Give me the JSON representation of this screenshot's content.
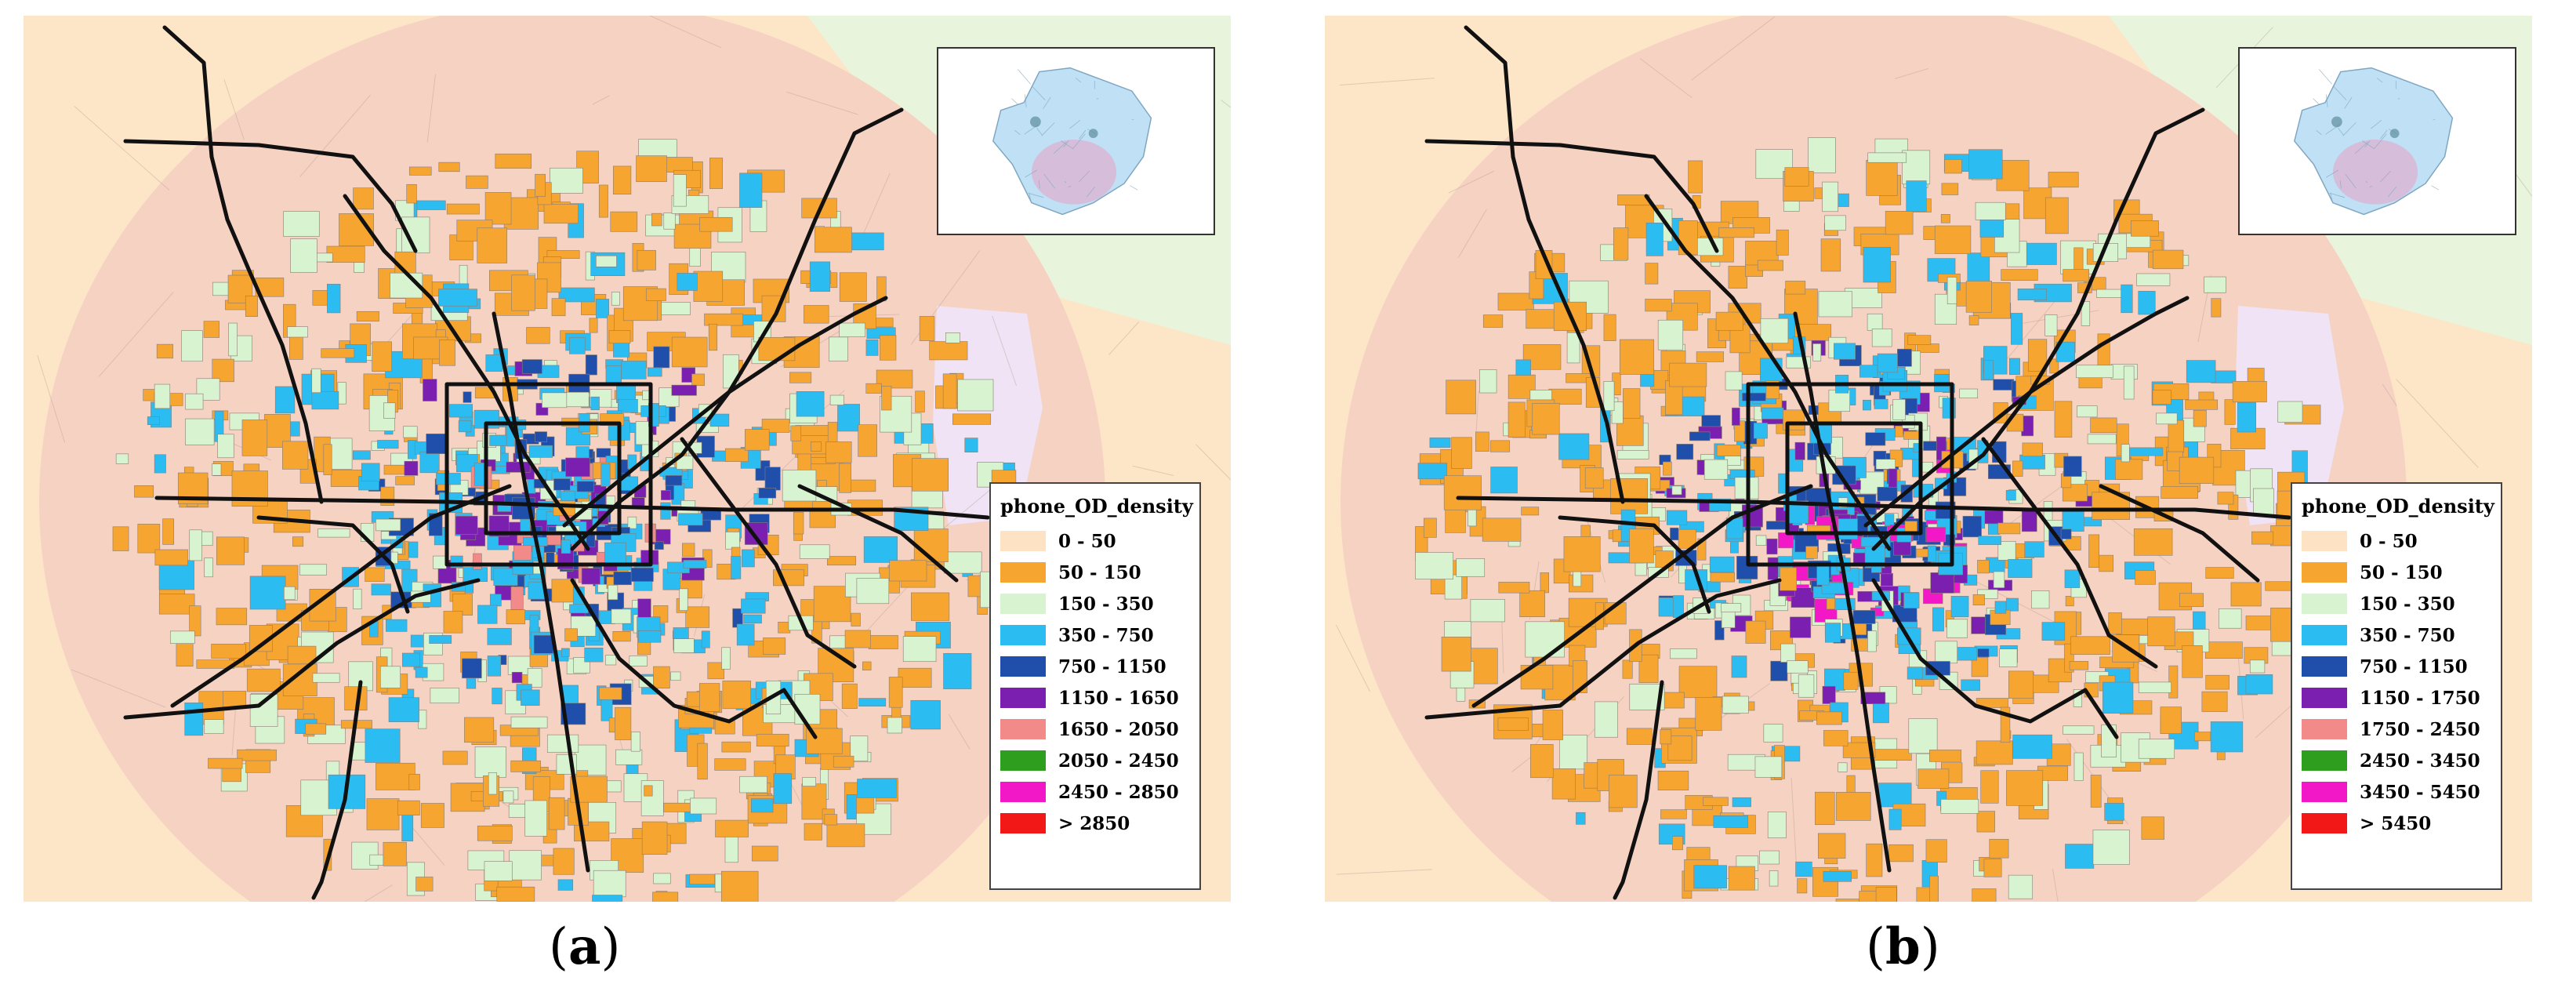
{
  "panels": [
    {
      "id": "a",
      "caption_letter": "a",
      "legend": {
        "title": "phone_OD_density",
        "items": [
          {
            "label": "0 - 50",
            "color": "#fde3c4"
          },
          {
            "label": "50 - 150",
            "color": "#f6a530"
          },
          {
            "label": "150 - 350",
            "color": "#d8f3cf"
          },
          {
            "label": "350 - 750",
            "color": "#2bbcf2"
          },
          {
            "label": "750 - 1150",
            "color": "#1f4faa"
          },
          {
            "label": "1150 - 1650",
            "color": "#7a1fb0"
          },
          {
            "label": "1650 - 2050",
            "color": "#f28a8a"
          },
          {
            "label": "2050 - 2450",
            "color": "#2e9e1e"
          },
          {
            "label": "2450 - 2850",
            "color": "#f218c8"
          },
          {
            "label": "> 2850",
            "color": "#f21818"
          }
        ]
      }
    },
    {
      "id": "b",
      "caption_letter": "b",
      "legend": {
        "title": "phone_OD_density",
        "items": [
          {
            "label": "0 - 50",
            "color": "#fde3c4"
          },
          {
            "label": "50 - 150",
            "color": "#f6a530"
          },
          {
            "label": "150 - 350",
            "color": "#d8f3cf"
          },
          {
            "label": "350 - 750",
            "color": "#2bbcf2"
          },
          {
            "label": "750 - 1150",
            "color": "#1f4faa"
          },
          {
            "label": "1150 - 1750",
            "color": "#7a1fb0"
          },
          {
            "label": "1750 - 2450",
            "color": "#f28a8a"
          },
          {
            "label": "2450 - 3450",
            "color": "#2e9e1e"
          },
          {
            "label": "3450 - 5450",
            "color": "#f218c8"
          },
          {
            "label": "> 5450",
            "color": "#f21818"
          }
        ]
      }
    }
  ],
  "colors": {
    "background_fringe": "#fde6c8",
    "study_area": "#f6d2c2",
    "northeast_region": "#e8f5dc",
    "east_region": "#efe3f5",
    "subway_line": "#111111",
    "inset_map": "#bfe0f5"
  },
  "icons": [
    "subway-line",
    "inset-locator-map"
  ]
}
